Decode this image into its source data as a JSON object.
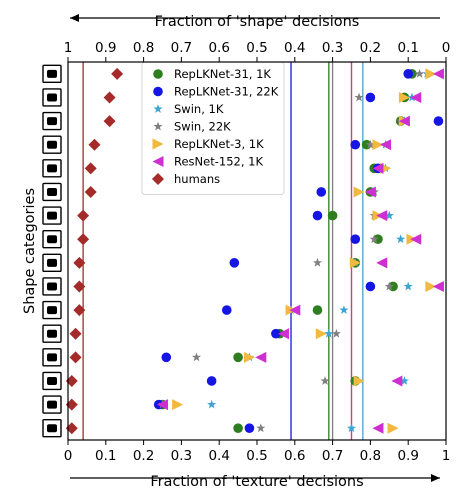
{
  "chart_data": {
    "type": "scatter",
    "xlabel_bottom": "Fraction of 'texture' decisions",
    "xlabel_top": "Fraction of 'shape' decisions",
    "ylabel": "Shape categories",
    "xlim": [
      0,
      1
    ],
    "top_axis_reversed": true,
    "x_ticks_bottom": [
      "0",
      "0.1",
      "0.2",
      "0.3",
      "0.4",
      "0.5",
      "0.6",
      "0.7",
      "0.8",
      "0.9",
      "1"
    ],
    "x_ticks_top": [
      "1",
      "0.9",
      "0.8",
      "0.7",
      "0.6",
      "0.5",
      "0.4",
      "0.3",
      "0.2",
      "0.1",
      "0"
    ],
    "legend_position": "upper-center",
    "categories": [
      "knife",
      "bottle",
      "airplane",
      "bear",
      "dog",
      "oven",
      "cat",
      "elephant",
      "clock",
      "bird",
      "car",
      "truck",
      "bottle2",
      "chair",
      "clock2",
      "bicycle"
    ],
    "category_icons": [
      "knife-icon",
      "bottle-icon",
      "airplane-icon",
      "bear-icon",
      "dog-icon",
      "oven-icon",
      "cat-icon",
      "elephant-icon",
      "clock-icon",
      "bird-icon",
      "car-icon",
      "truck-icon",
      "bottle2-icon",
      "chair-icon",
      "clock2-icon",
      "bicycle-icon"
    ],
    "series": [
      {
        "name": "RepLKNet-31, 1K",
        "marker": "circle",
        "color": "#2e7d1f",
        "values": [
          0.91,
          0.89,
          0.88,
          0.79,
          0.81,
          0.8,
          0.7,
          0.82,
          0.76,
          0.86,
          0.66,
          0.56,
          0.45,
          0.76,
          0.25,
          0.45
        ],
        "mean": 0.69
      },
      {
        "name": "RepLKNet-31, 22K",
        "marker": "circle",
        "color": "#1515e6",
        "values": [
          0.9,
          0.8,
          0.98,
          0.76,
          0.82,
          0.67,
          0.66,
          0.76,
          0.44,
          0.8,
          0.42,
          0.55,
          0.26,
          0.38,
          0.24,
          0.48
        ],
        "mean": 0.59
      },
      {
        "name": "Swin, 1K",
        "marker": "star",
        "color": "#3ba6d2",
        "values": [
          0.95,
          0.91,
          0.89,
          0.84,
          0.84,
          0.81,
          0.85,
          0.88,
          0.76,
          0.9,
          0.73,
          0.69,
          0.48,
          0.89,
          0.38,
          0.75
        ],
        "mean": 0.78
      },
      {
        "name": "Swin, 22K",
        "marker": "star",
        "color": "#808080",
        "values": [
          0.93,
          0.77,
          0.88,
          0.8,
          0.83,
          0.81,
          0.81,
          0.81,
          0.66,
          0.85,
          0.59,
          0.71,
          0.34,
          0.68,
          0.25,
          0.51
        ],
        "mean": 0.7
      },
      {
        "name": "RepLKNet-3, 1K",
        "marker": "triangle-right",
        "color": "#f1b93d",
        "values": [
          0.96,
          0.89,
          0.89,
          0.82,
          0.84,
          0.77,
          0.82,
          0.91,
          0.76,
          0.96,
          0.59,
          0.67,
          0.48,
          0.77,
          0.29,
          0.86
        ],
        "mean": 0.75
      },
      {
        "name": "ResNet-152, 1K",
        "marker": "triangle-left",
        "color": "#cf2ed3",
        "values": [
          0.98,
          0.92,
          0.89,
          0.84,
          0.82,
          0.8,
          0.83,
          0.92,
          0.83,
          0.98,
          0.6,
          0.57,
          0.51,
          0.87,
          0.25,
          0.82
        ],
        "mean": 0.75
      },
      {
        "name": "humans",
        "marker": "diamond",
        "color": "#a52b2b",
        "values": [
          0.13,
          0.11,
          0.11,
          0.07,
          0.06,
          0.06,
          0.04,
          0.04,
          0.03,
          0.03,
          0.03,
          0.02,
          0.02,
          0.01,
          0.01,
          0.01
        ],
        "mean": 0.04
      }
    ]
  }
}
